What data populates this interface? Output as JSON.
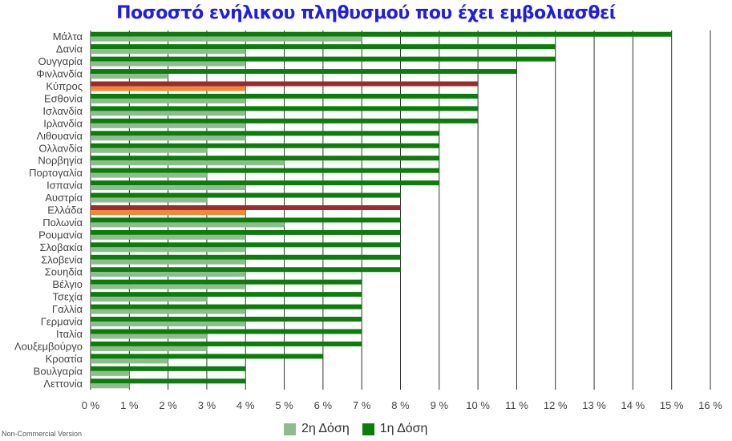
{
  "chart_data": {
    "type": "bar",
    "orientation": "horizontal",
    "title": "Ποσοστό ενήλικου πληθυσμού που έχει εμβολιασθεί",
    "categories": [
      "Μάλτα",
      "Δανία",
      "Ουγγαρία",
      "Φινλανδία",
      "Κύπρος",
      "Εσθονία",
      "Ισλανδία",
      "Ιρλανδία",
      "Λιθουανία",
      "Ολλανδία",
      "Νορβηγία",
      "Πορτογαλία",
      "Ισπανία",
      "Αυστρία",
      "Ελλάδα",
      "Πολωνία",
      "Ρουμανία",
      "Σλοβακία",
      "Σλοβενία",
      "Σουηδία",
      "Βέλγιο",
      "Τσεχία",
      "Γαλλία",
      "Γερμανία",
      "Ιταλία",
      "Λουξεμβούργο",
      "Κροατία",
      "Βουλγαρία",
      "Λεττονία"
    ],
    "series": [
      {
        "name": "1η Δόση",
        "color": "#0a7d0a",
        "highlight_color": "#9b2c2c",
        "values": [
          15,
          12,
          12,
          11,
          10,
          10,
          10,
          10,
          9,
          9,
          9,
          9,
          9,
          8,
          8,
          8,
          8,
          8,
          8,
          8,
          7,
          7,
          7,
          7,
          7,
          7,
          6,
          4,
          4
        ]
      },
      {
        "name": "2η Δόση",
        "color": "#8fbc8f",
        "highlight_color": "#f0893a",
        "values": [
          7,
          4,
          4,
          2,
          4,
          4,
          4,
          4,
          4,
          3,
          5,
          3,
          4,
          3,
          4,
          5,
          4,
          4,
          4,
          4,
          4,
          3,
          4,
          4,
          3,
          3,
          2,
          1,
          1
        ]
      }
    ],
    "highlighted_categories": [
      "Κύπρος",
      "Ελλάδα"
    ],
    "xlim": [
      0,
      16
    ],
    "x_ticks": [
      "0 %",
      "1 %",
      "2 %",
      "3 %",
      "4 %",
      "5 %",
      "6 %",
      "7 %",
      "8 %",
      "9 %",
      "10 %",
      "11 %",
      "12 %",
      "13 %",
      "14 %",
      "15 %",
      "16 %"
    ],
    "grid": true,
    "legend_position": "bottom",
    "legend": [
      {
        "label": "2η Δόση",
        "color": "#8fbc8f"
      },
      {
        "label": "1η Δόση",
        "color": "#0a7d0a"
      }
    ]
  },
  "watermark": "Non-Commercial Version"
}
